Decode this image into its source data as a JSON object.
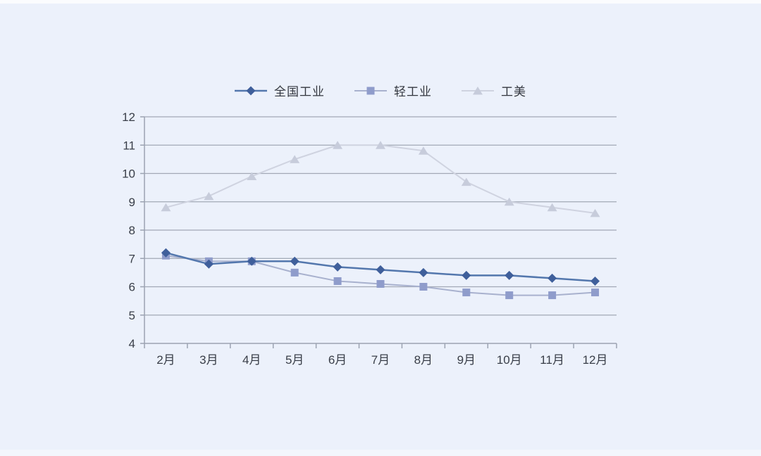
{
  "page": {
    "background_color": "#ECF1FB"
  },
  "chart_data": {
    "type": "line",
    "title": "",
    "xlabel": "",
    "ylabel": "",
    "categories": [
      "2月",
      "3月",
      "4月",
      "5月",
      "6月",
      "7月",
      "8月",
      "9月",
      "10月",
      "11月",
      "12月"
    ],
    "series": [
      {
        "name": "全国工业",
        "marker": "diamond",
        "line_color": "#5377AD",
        "marker_color": "#3F5F9B",
        "line_width": 2.5,
        "values": [
          7.2,
          6.8,
          6.9,
          6.9,
          6.7,
          6.6,
          6.5,
          6.4,
          6.4,
          6.3,
          6.2
        ]
      },
      {
        "name": "轻工业",
        "marker": "square",
        "line_color": "#A8B1CE",
        "marker_color": "#8F9CCB",
        "line_width": 2,
        "values": [
          7.1,
          6.9,
          6.9,
          6.5,
          6.2,
          6.1,
          6.0,
          5.8,
          5.7,
          5.7,
          5.8
        ]
      },
      {
        "name": "工美",
        "marker": "triangle",
        "line_color": "#CFD3E0",
        "marker_color": "#C7CCDB",
        "line_width": 2,
        "values": [
          8.8,
          9.2,
          9.9,
          10.5,
          11.0,
          11.0,
          10.8,
          9.7,
          9.0,
          8.8,
          8.6
        ]
      }
    ],
    "ylim": [
      4,
      12
    ],
    "yticks": [
      4,
      5,
      6,
      7,
      8,
      9,
      10,
      11,
      12
    ],
    "grid": "horizontal",
    "legend_position": "top-center",
    "axis_color": "#9CA3B2",
    "grid_color": "#A2A8B6",
    "tick_label_color": "#393E48"
  }
}
